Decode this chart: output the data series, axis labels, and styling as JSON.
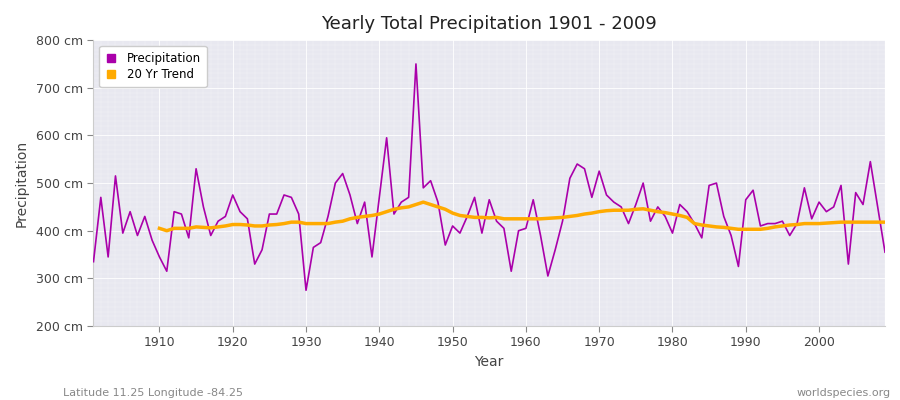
{
  "title": "Yearly Total Precipitation 1901 - 2009",
  "xlabel": "Year",
  "ylabel": "Precipitation",
  "subtitle": "Latitude 11.25 Longitude -84.25",
  "watermark": "worldspecies.org",
  "bg_color": "#ffffff",
  "plot_bg_color": "#e8e8f0",
  "precip_color": "#aa00aa",
  "trend_color": "#ffaa00",
  "ylim": [
    200,
    800
  ],
  "yticks": [
    200,
    300,
    400,
    500,
    600,
    700,
    800
  ],
  "xlim": [
    1901,
    2009
  ],
  "xticks": [
    1910,
    1920,
    1930,
    1940,
    1950,
    1960,
    1970,
    1980,
    1990,
    2000
  ],
  "years": [
    1901,
    1902,
    1903,
    1904,
    1905,
    1906,
    1907,
    1908,
    1909,
    1910,
    1911,
    1912,
    1913,
    1914,
    1915,
    1916,
    1917,
    1918,
    1919,
    1920,
    1921,
    1922,
    1923,
    1924,
    1925,
    1926,
    1927,
    1928,
    1929,
    1930,
    1931,
    1932,
    1933,
    1934,
    1935,
    1936,
    1937,
    1938,
    1939,
    1940,
    1941,
    1942,
    1943,
    1944,
    1945,
    1946,
    1947,
    1948,
    1949,
    1950,
    1951,
    1952,
    1953,
    1954,
    1955,
    1956,
    1957,
    1958,
    1959,
    1960,
    1961,
    1962,
    1963,
    1964,
    1965,
    1966,
    1967,
    1968,
    1969,
    1970,
    1971,
    1972,
    1973,
    1974,
    1975,
    1976,
    1977,
    1978,
    1979,
    1980,
    1981,
    1982,
    1983,
    1984,
    1985,
    1986,
    1987,
    1988,
    1989,
    1990,
    1991,
    1992,
    1993,
    1994,
    1995,
    1996,
    1997,
    1998,
    1999,
    2000,
    2001,
    2002,
    2003,
    2004,
    2005,
    2006,
    2007,
    2008,
    2009
  ],
  "precip": [
    335,
    470,
    345,
    515,
    395,
    440,
    390,
    430,
    380,
    345,
    315,
    440,
    435,
    385,
    530,
    450,
    390,
    420,
    430,
    475,
    440,
    425,
    330,
    360,
    435,
    435,
    475,
    470,
    435,
    275,
    365,
    375,
    430,
    500,
    520,
    475,
    415,
    460,
    345,
    470,
    595,
    435,
    460,
    470,
    750,
    490,
    505,
    460,
    370,
    410,
    395,
    430,
    470,
    395,
    465,
    420,
    405,
    315,
    400,
    405,
    465,
    390,
    305,
    360,
    420,
    510,
    540,
    530,
    470,
    525,
    475,
    460,
    450,
    415,
    455,
    500,
    420,
    450,
    430,
    395,
    455,
    440,
    415,
    385,
    495,
    500,
    430,
    390,
    325,
    465,
    485,
    410,
    415,
    415,
    420,
    390,
    415,
    490,
    425,
    460,
    440,
    450,
    495,
    330,
    480,
    455,
    545,
    450,
    355
  ],
  "trend": [
    null,
    null,
    null,
    null,
    null,
    null,
    null,
    null,
    null,
    405,
    400,
    405,
    405,
    405,
    408,
    407,
    406,
    408,
    410,
    413,
    413,
    412,
    410,
    410,
    412,
    413,
    415,
    418,
    418,
    415,
    415,
    415,
    415,
    418,
    420,
    425,
    428,
    430,
    432,
    435,
    440,
    445,
    448,
    450,
    455,
    460,
    455,
    450,
    445,
    437,
    432,
    430,
    428,
    428,
    427,
    428,
    425,
    425,
    425,
    425,
    425,
    425,
    426,
    427,
    428,
    430,
    432,
    435,
    437,
    440,
    442,
    443,
    443,
    443,
    445,
    446,
    443,
    440,
    438,
    435,
    432,
    428,
    415,
    412,
    410,
    408,
    407,
    405,
    403,
    403,
    403,
    403,
    405,
    408,
    410,
    412,
    413,
    415,
    415,
    415,
    416,
    417,
    418,
    418,
    418,
    418,
    418,
    418,
    418
  ]
}
